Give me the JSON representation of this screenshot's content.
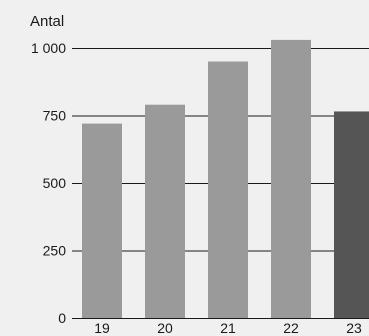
{
  "chart_data": {
    "type": "bar",
    "ylabel": "Antal",
    "categories": [
      "19",
      "20",
      "21",
      "22",
      "23"
    ],
    "values": [
      720,
      790,
      950,
      1030,
      765
    ],
    "ylim": [
      0,
      1000
    ],
    "yticks": [
      {
        "value": 0,
        "label": "0"
      },
      {
        "value": 250,
        "label": "250"
      },
      {
        "value": 500,
        "label": "500"
      },
      {
        "value": 750,
        "label": "750"
      },
      {
        "value": 1000,
        "label": "1 000"
      }
    ],
    "grid": true,
    "colors": {
      "background": "#f0f0f0",
      "bar": "#9a9a9a",
      "bar_highlight": "#555555",
      "grid": "#1a1a1a",
      "text": "#1a1a1a"
    },
    "highlight_index": 4
  }
}
